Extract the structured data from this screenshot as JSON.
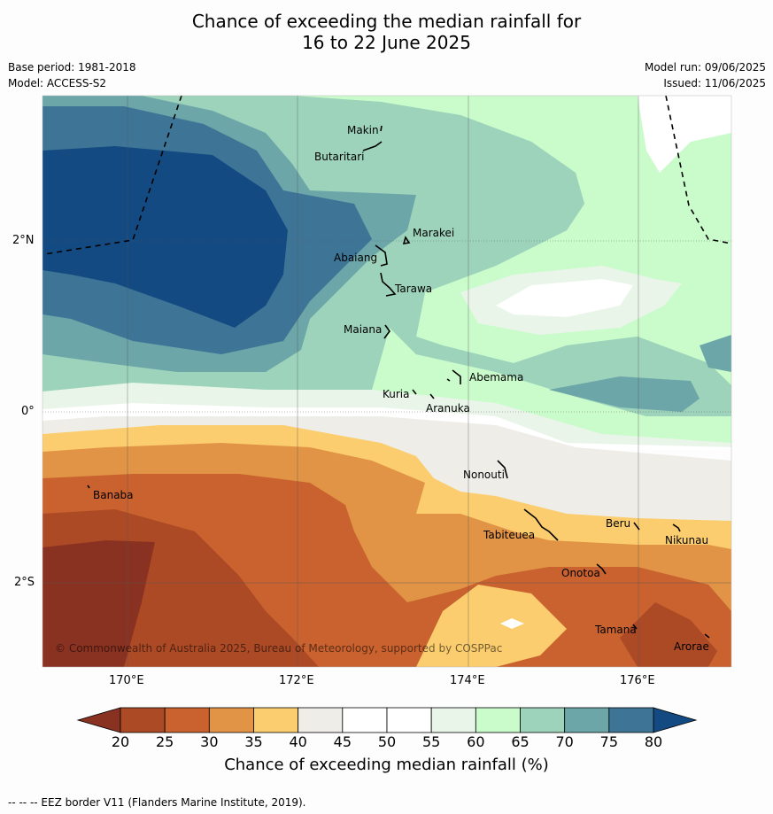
{
  "title_line1": "Chance of exceeding the median rainfall for",
  "title_line2": "16 to 22 June 2025",
  "base_period": "Base period: 1981-2018",
  "model": "Model: ACCESS-S2",
  "model_run": "Model run: 09/06/2025",
  "issued": "Issued: 11/06/2025",
  "copyright": "© Commonwealth of Australia 2025, Bureau of Meteorology, supported by COSPPac",
  "lat_ticks": [
    "2°N",
    "0°",
    "2°S"
  ],
  "lon_ticks": [
    "170°E",
    "172°E",
    "174°E",
    "176°E"
  ],
  "islands": [
    {
      "name": "Makin"
    },
    {
      "name": "Butaritari"
    },
    {
      "name": "Marakei"
    },
    {
      "name": "Abaiang"
    },
    {
      "name": "Tarawa"
    },
    {
      "name": "Maiana"
    },
    {
      "name": "Abemama"
    },
    {
      "name": "Kuria"
    },
    {
      "name": "Aranuka"
    },
    {
      "name": "Nonouti"
    },
    {
      "name": "Banaba"
    },
    {
      "name": "Beru"
    },
    {
      "name": "Tabiteuea"
    },
    {
      "name": "Nikunau"
    },
    {
      "name": "Onotoa"
    },
    {
      "name": "Tamana"
    },
    {
      "name": "Arorae"
    }
  ],
  "colorbar": {
    "ticks": [
      "20",
      "25",
      "30",
      "35",
      "40",
      "45",
      "50",
      "55",
      "60",
      "65",
      "70",
      "75",
      "80"
    ],
    "colors": [
      "#ad4a26",
      "#c9622f",
      "#e19446",
      "#fbcd6e",
      "#efede8",
      "#ffffff",
      "#ffffff",
      "#eaf5ea",
      "#c9fbcb",
      "#9dd3bb",
      "#6ca6a8",
      "#3e7597"
    ],
    "under_color": "#8a3222",
    "over_color": "#144a82",
    "label": "Chance of exceeding median rainfall (%)"
  },
  "footnote": "--  --  -- EEZ border V11 (Flanders Marine Institute, 2019)."
}
